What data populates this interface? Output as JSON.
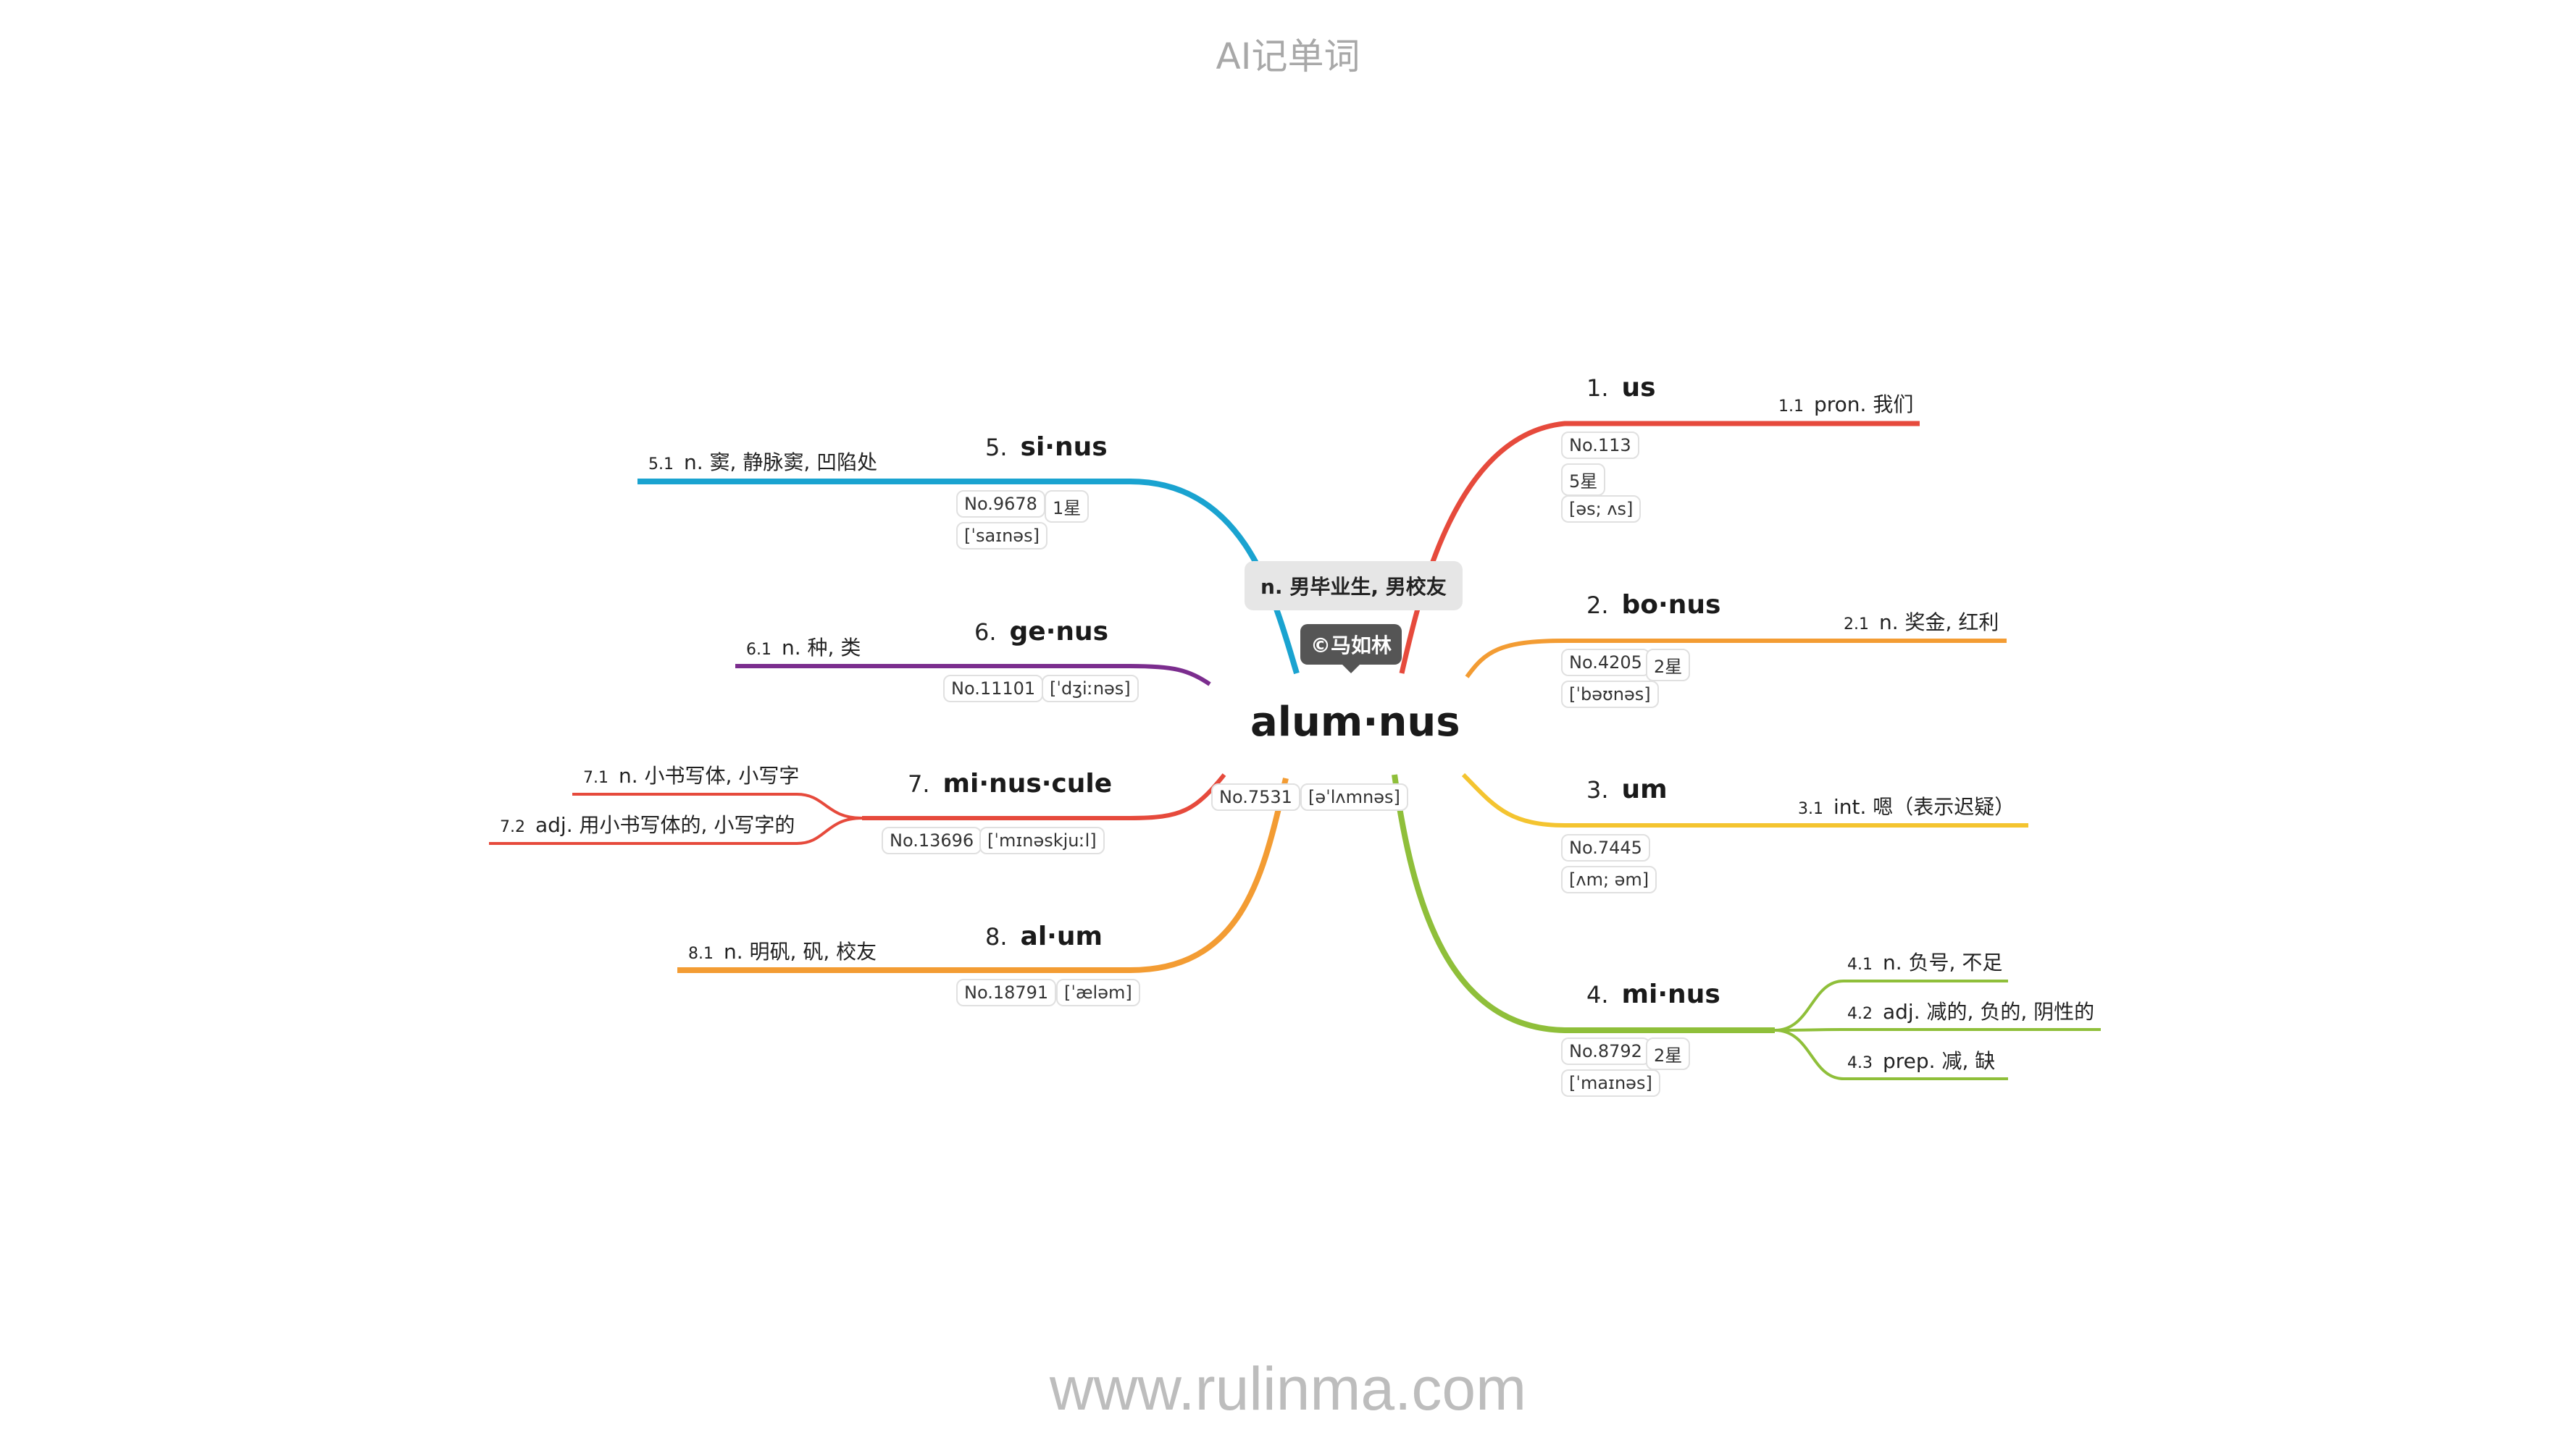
{
  "header": {
    "title": "AI记单词"
  },
  "footer": {
    "url": "www.rulinma.com"
  },
  "center": {
    "word": "alum·nus",
    "meaning": "n. 男毕业生, 男校友",
    "author": "©马如林",
    "number": "No.7531",
    "phonetic": "[əˈlʌmnəs]"
  },
  "branches": [
    {
      "num": "1.",
      "word": "us",
      "color": "#e64a3c",
      "badges": [
        "No.113",
        "5星",
        "[əs; ʌs]"
      ],
      "senses": [
        {
          "num": "1.1",
          "text": "pron. 我们"
        }
      ]
    },
    {
      "num": "2.",
      "word": "bo·nus",
      "color": "#f39c33",
      "badges": [
        "No.4205",
        "2星",
        "[ˈbəʊnəs]"
      ],
      "senses": [
        {
          "num": "2.1",
          "text": "n. 奖金, 红利"
        }
      ]
    },
    {
      "num": "3.",
      "word": "um",
      "color": "#f4c430",
      "badges": [
        "No.7445",
        "[ʌm; əm]"
      ],
      "senses": [
        {
          "num": "3.1",
          "text": "int. 嗯（表示迟疑）"
        }
      ]
    },
    {
      "num": "4.",
      "word": "mi·nus",
      "color": "#8fbf3a",
      "badges": [
        "No.8792",
        "2星",
        "[ˈmaɪnəs]"
      ],
      "senses": [
        {
          "num": "4.1",
          "text": "n. 负号, 不足"
        },
        {
          "num": "4.2",
          "text": "adj. 减的, 负的, 阴性的"
        },
        {
          "num": "4.3",
          "text": "prep. 减, 缺"
        }
      ]
    },
    {
      "num": "5.",
      "word": "si·nus",
      "color": "#1aa3d0",
      "badges": [
        "No.9678",
        "1星",
        "[ˈsaɪnəs]"
      ],
      "senses": [
        {
          "num": "5.1",
          "text": "n. 窦, 静脉窦, 凹陷处"
        }
      ]
    },
    {
      "num": "6.",
      "word": "ge·nus",
      "color": "#7b2d8e",
      "badges": [
        "No.11101",
        "[ˈdʒiːnəs]"
      ],
      "senses": [
        {
          "num": "6.1",
          "text": "n. 种, 类"
        }
      ]
    },
    {
      "num": "7.",
      "word": "mi·nus·cule",
      "color": "#e64a3c",
      "badges": [
        "No.13696",
        "[ˈmɪnəskjuːl]"
      ],
      "senses": [
        {
          "num": "7.1",
          "text": "n. 小书写体, 小写字"
        },
        {
          "num": "7.2",
          "text": "adj. 用小书写体的, 小写字的"
        }
      ]
    },
    {
      "num": "8.",
      "word": "al·um",
      "color": "#f39c33",
      "badges": [
        "No.18791",
        "[ˈæləm]"
      ],
      "senses": [
        {
          "num": "8.1",
          "text": "n. 明矾, 矾, 校友"
        }
      ]
    }
  ]
}
